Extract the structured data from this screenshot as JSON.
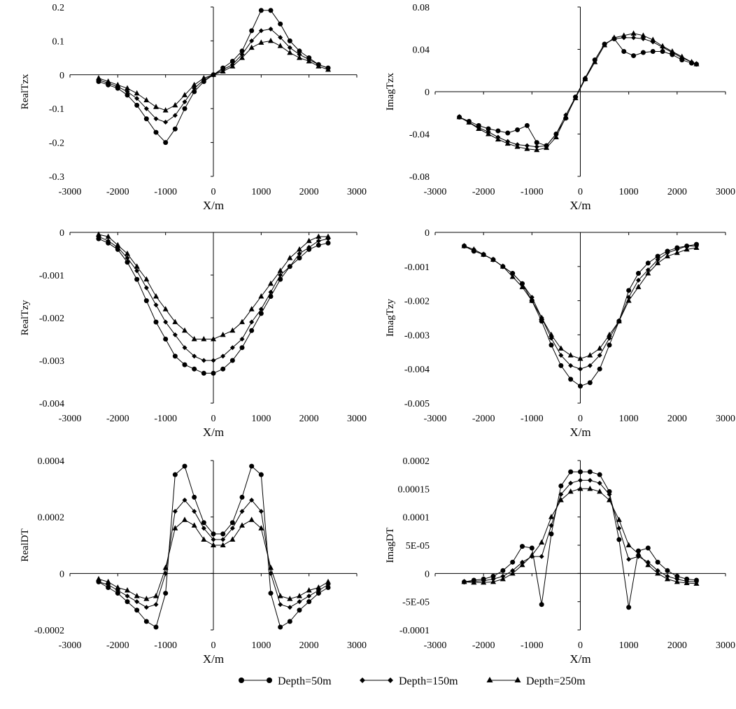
{
  "legend": [
    {
      "label": "Depth=50m",
      "marker": "circle"
    },
    {
      "label": "Depth=150m",
      "marker": "diamond"
    },
    {
      "label": "Depth=250m",
      "marker": "triangle"
    }
  ],
  "chart_data": [
    {
      "type": "line",
      "title": "",
      "xlabel": "X/m",
      "ylabel": "RealTzx",
      "xlim": [
        -3000,
        3000
      ],
      "ylim": [
        -0.3,
        0.2
      ],
      "xticks": [
        -3000,
        -2000,
        -1000,
        0,
        1000,
        2000,
        3000
      ],
      "xtick_labels": [
        "-3000",
        "-2000",
        "-1000",
        "0",
        "1000",
        "2000",
        "3000"
      ],
      "yticks": [
        -0.3,
        -0.2,
        -0.1,
        0,
        0.1,
        0.2
      ],
      "ytick_labels": [
        "-0.3",
        "-0.2",
        "-0.1",
        "0",
        "0.1",
        "0.2"
      ],
      "x": [
        -2400,
        -2200,
        -2000,
        -1800,
        -1600,
        -1400,
        -1200,
        -1000,
        -800,
        -600,
        -400,
        -200,
        0,
        200,
        400,
        600,
        800,
        1000,
        1200,
        1400,
        1600,
        1800,
        2000,
        2200,
        2400
      ],
      "series": [
        {
          "name": "Depth=50m",
          "values": [
            -0.02,
            -0.03,
            -0.04,
            -0.06,
            -0.09,
            -0.13,
            -0.17,
            -0.2,
            -0.16,
            -0.1,
            -0.05,
            -0.02,
            0,
            0.02,
            0.04,
            0.07,
            0.13,
            0.19,
            0.19,
            0.15,
            0.1,
            0.07,
            0.05,
            0.03,
            0.02
          ]
        },
        {
          "name": "Depth=150m",
          "values": [
            -0.015,
            -0.025,
            -0.035,
            -0.05,
            -0.07,
            -0.1,
            -0.13,
            -0.14,
            -0.12,
            -0.08,
            -0.04,
            -0.015,
            0,
            0.015,
            0.03,
            0.06,
            0.1,
            0.13,
            0.135,
            0.11,
            0.08,
            0.06,
            0.045,
            0.03,
            0.02
          ]
        },
        {
          "name": "Depth=250m",
          "values": [
            -0.01,
            -0.02,
            -0.03,
            -0.04,
            -0.055,
            -0.075,
            -0.095,
            -0.105,
            -0.09,
            -0.06,
            -0.03,
            -0.01,
            0,
            0.01,
            0.025,
            0.05,
            0.08,
            0.095,
            0.1,
            0.085,
            0.065,
            0.05,
            0.04,
            0.025,
            0.015
          ]
        }
      ]
    },
    {
      "type": "line",
      "title": "",
      "xlabel": "X/m",
      "ylabel": "ImagTzx",
      "xlim": [
        -3000,
        3000
      ],
      "ylim": [
        -0.08,
        0.08
      ],
      "xticks": [
        -3000,
        -2000,
        -1000,
        0,
        1000,
        2000,
        3000
      ],
      "xtick_labels": [
        "-3000",
        "-2000",
        "-1000",
        "0",
        "1000",
        "2000",
        "3000"
      ],
      "yticks": [
        -0.08,
        -0.04,
        0,
        0.04,
        0.08
      ],
      "ytick_labels": [
        "-0.08",
        "-0.04",
        "0",
        "0.04",
        "0.08"
      ],
      "x": [
        -2500,
        -2300,
        -2100,
        -1900,
        -1700,
        -1500,
        -1300,
        -1100,
        -900,
        -700,
        -500,
        -300,
        -100,
        100,
        300,
        500,
        700,
        900,
        1100,
        1300,
        1500,
        1700,
        1900,
        2100,
        2300,
        2400
      ],
      "series": [
        {
          "name": "Depth=50m",
          "values": [
            -0.024,
            -0.028,
            -0.032,
            -0.035,
            -0.037,
            -0.039,
            -0.036,
            -0.032,
            -0.048,
            -0.051,
            -0.04,
            -0.025,
            -0.005,
            0.012,
            0.03,
            0.045,
            0.05,
            0.038,
            0.034,
            0.037,
            0.038,
            0.038,
            0.035,
            0.03,
            0.027,
            0.026
          ]
        },
        {
          "name": "Depth=150m",
          "values": [
            -0.024,
            -0.029,
            -0.034,
            -0.038,
            -0.043,
            -0.047,
            -0.05,
            -0.051,
            -0.052,
            -0.051,
            -0.04,
            -0.022,
            -0.005,
            0.013,
            0.03,
            0.045,
            0.05,
            0.051,
            0.051,
            0.05,
            0.047,
            0.042,
            0.037,
            0.032,
            0.028,
            0.026
          ]
        },
        {
          "name": "Depth=250m",
          "values": [
            -0.024,
            -0.029,
            -0.035,
            -0.04,
            -0.045,
            -0.049,
            -0.052,
            -0.054,
            -0.055,
            -0.053,
            -0.043,
            -0.024,
            -0.006,
            0.012,
            0.028,
            0.044,
            0.051,
            0.053,
            0.055,
            0.053,
            0.049,
            0.043,
            0.038,
            0.033,
            0.028,
            0.026
          ]
        }
      ]
    },
    {
      "type": "line",
      "title": "",
      "xlabel": "X/m",
      "ylabel": "RealTzy",
      "xlim": [
        -3000,
        3000
      ],
      "ylim": [
        -0.004,
        0
      ],
      "xticks": [
        -3000,
        -2000,
        -1000,
        0,
        1000,
        2000,
        3000
      ],
      "xtick_labels": [
        "-3000",
        "-2000",
        "-1000",
        "0",
        "1000",
        "2000",
        "3000"
      ],
      "yticks": [
        -0.004,
        -0.003,
        -0.002,
        -0.001,
        0
      ],
      "ytick_labels": [
        "-0.004",
        "-0.003",
        "-0.002",
        "-0.001",
        "0"
      ],
      "x": [
        -2400,
        -2200,
        -2000,
        -1800,
        -1600,
        -1400,
        -1200,
        -1000,
        -800,
        -600,
        -400,
        -200,
        0,
        200,
        400,
        600,
        800,
        1000,
        1200,
        1400,
        1600,
        1800,
        2000,
        2200,
        2400
      ],
      "series": [
        {
          "name": "Depth=50m",
          "values": [
            -0.00015,
            -0.00025,
            -0.0004,
            -0.0007,
            -0.0011,
            -0.0016,
            -0.0021,
            -0.0025,
            -0.0029,
            -0.0031,
            -0.0032,
            -0.0033,
            -0.0033,
            -0.0032,
            -0.003,
            -0.0027,
            -0.0023,
            -0.0019,
            -0.0015,
            -0.0011,
            -0.0008,
            -0.0006,
            -0.0004,
            -0.0003,
            -0.00025
          ]
        },
        {
          "name": "Depth=150m",
          "values": [
            -0.0001,
            -0.0002,
            -0.00035,
            -0.0006,
            -0.0009,
            -0.0013,
            -0.0017,
            -0.0021,
            -0.0024,
            -0.0027,
            -0.0029,
            -0.003,
            -0.003,
            -0.0029,
            -0.0027,
            -0.0025,
            -0.0021,
            -0.0018,
            -0.0014,
            -0.001,
            -0.0008,
            -0.0005,
            -0.00035,
            -0.0002,
            -0.00015
          ]
        },
        {
          "name": "Depth=250m",
          "values": [
            -5e-05,
            -0.0001,
            -0.0003,
            -0.0005,
            -0.0008,
            -0.0011,
            -0.0015,
            -0.0018,
            -0.0021,
            -0.0023,
            -0.0025,
            -0.0025,
            -0.0025,
            -0.0024,
            -0.0023,
            -0.0021,
            -0.0018,
            -0.0015,
            -0.0012,
            -0.0009,
            -0.0006,
            -0.0004,
            -0.0002,
            -0.0001,
            -0.0001
          ]
        }
      ]
    },
    {
      "type": "line",
      "title": "",
      "xlabel": "X/m",
      "ylabel": "ImagTzy",
      "xlim": [
        -3000,
        3000
      ],
      "ylim": [
        -0.005,
        0
      ],
      "xticks": [
        -3000,
        -2000,
        -1000,
        0,
        1000,
        2000,
        3000
      ],
      "xtick_labels": [
        "-3000",
        "-2000",
        "-1000",
        "0",
        "1000",
        "2000",
        "3000"
      ],
      "yticks": [
        -0.005,
        -0.004,
        -0.003,
        -0.002,
        -0.001,
        0
      ],
      "ytick_labels": [
        "-0.005",
        "-0.004",
        "-0.003",
        "-0.002",
        "-0.001",
        "0"
      ],
      "x": [
        -2400,
        -2200,
        -2000,
        -1800,
        -1600,
        -1400,
        -1200,
        -1000,
        -800,
        -600,
        -400,
        -200,
        0,
        200,
        400,
        600,
        800,
        1000,
        1200,
        1400,
        1600,
        1800,
        2000,
        2200,
        2400
      ],
      "series": [
        {
          "name": "Depth=50m",
          "values": [
            -0.0004,
            -0.00055,
            -0.00065,
            -0.0008,
            -0.001,
            -0.0012,
            -0.0015,
            -0.002,
            -0.0026,
            -0.0033,
            -0.0039,
            -0.0043,
            -0.0045,
            -0.0044,
            -0.004,
            -0.0033,
            -0.0026,
            -0.0017,
            -0.0012,
            -0.0009,
            -0.0007,
            -0.00055,
            -0.00045,
            -0.0004,
            -0.00035
          ]
        },
        {
          "name": "Depth=150m",
          "values": [
            -0.0004,
            -0.0005,
            -0.00065,
            -0.0008,
            -0.001,
            -0.0012,
            -0.0015,
            -0.0019,
            -0.0025,
            -0.0031,
            -0.0036,
            -0.0039,
            -0.004,
            -0.0039,
            -0.0036,
            -0.0031,
            -0.0026,
            -0.0019,
            -0.0014,
            -0.0011,
            -0.0008,
            -0.0006,
            -0.0005,
            -0.0004,
            -0.0004
          ]
        },
        {
          "name": "Depth=250m",
          "values": [
            -0.0004,
            -0.0005,
            -0.00065,
            -0.0008,
            -0.001,
            -0.0013,
            -0.0016,
            -0.002,
            -0.0025,
            -0.003,
            -0.0034,
            -0.0036,
            -0.0037,
            -0.0036,
            -0.0034,
            -0.003,
            -0.0026,
            -0.002,
            -0.0016,
            -0.0012,
            -0.0009,
            -0.0007,
            -0.0006,
            -0.0005,
            -0.00045
          ]
        }
      ]
    },
    {
      "type": "line",
      "title": "",
      "xlabel": "X/m",
      "ylabel": "RealDT",
      "xlim": [
        -3000,
        3000
      ],
      "ylim": [
        -0.0002,
        0.0004
      ],
      "xticks": [
        -3000,
        -2000,
        -1000,
        0,
        1000,
        2000,
        3000
      ],
      "xtick_labels": [
        "-3000",
        "-2000",
        "-1000",
        "0",
        "1000",
        "2000",
        "3000"
      ],
      "yticks": [
        -0.0002,
        0,
        0.0002,
        0.0004
      ],
      "ytick_labels": [
        "-0.0002",
        "0",
        "0.0002",
        "0.0004"
      ],
      "x": [
        -2400,
        -2200,
        -2000,
        -1800,
        -1600,
        -1400,
        -1200,
        -1000,
        -800,
        -600,
        -400,
        -200,
        0,
        200,
        400,
        600,
        800,
        1000,
        1200,
        1400,
        1600,
        1800,
        2000,
        2200,
        2400
      ],
      "series": [
        {
          "name": "Depth=50m",
          "values": [
            -3e-05,
            -5e-05,
            -7e-05,
            -0.0001,
            -0.00013,
            -0.00017,
            -0.00019,
            -7e-05,
            0.00035,
            0.00038,
            0.00027,
            0.00018,
            0.00014,
            0.00014,
            0.00018,
            0.00027,
            0.00038,
            0.00035,
            -7e-05,
            -0.00019,
            -0.00017,
            -0.00013,
            -0.0001,
            -7e-05,
            -5e-05
          ]
        },
        {
          "name": "Depth=150m",
          "values": [
            -3e-05,
            -4e-05,
            -6e-05,
            -8e-05,
            -0.0001,
            -0.00012,
            -0.00011,
            0,
            0.00022,
            0.00026,
            0.00022,
            0.00016,
            0.00012,
            0.00012,
            0.00016,
            0.00022,
            0.00026,
            0.00022,
            0,
            -0.00011,
            -0.00012,
            -0.0001,
            -8e-05,
            -6e-05,
            -4e-05
          ]
        },
        {
          "name": "Depth=250m",
          "values": [
            -2e-05,
            -3e-05,
            -5e-05,
            -6e-05,
            -8e-05,
            -9e-05,
            -8e-05,
            2e-05,
            0.00016,
            0.00019,
            0.00017,
            0.00012,
            0.0001,
            0.0001,
            0.00012,
            0.00017,
            0.00019,
            0.00016,
            2e-05,
            -8e-05,
            -9e-05,
            -8e-05,
            -6e-05,
            -5e-05,
            -3e-05
          ]
        }
      ]
    },
    {
      "type": "line",
      "title": "",
      "xlabel": "X/m",
      "ylabel": "ImagDT",
      "xlim": [
        -3000,
        3000
      ],
      "ylim": [
        -0.0001,
        0.0002
      ],
      "xticks": [
        -3000,
        -2000,
        -1000,
        0,
        1000,
        2000,
        3000
      ],
      "xtick_labels": [
        "-3000",
        "-2000",
        "-1000",
        "0",
        "1000",
        "2000",
        "3000"
      ],
      "yticks": [
        -0.0001,
        -5e-05,
        0,
        5e-05,
        0.0001,
        0.00015,
        0.0002
      ],
      "ytick_labels": [
        "-0.0001",
        "-5E-05",
        "0",
        "5E-05",
        "0.0001",
        "0.00015",
        "0.0002"
      ],
      "x": [
        -2400,
        -2200,
        -2000,
        -1800,
        -1600,
        -1400,
        -1200,
        -1000,
        -800,
        -600,
        -400,
        -200,
        0,
        200,
        400,
        600,
        800,
        1000,
        1200,
        1400,
        1600,
        1800,
        2000,
        2200,
        2400
      ],
      "series": [
        {
          "name": "Depth=50m",
          "values": [
            -1.5e-05,
            -1.2e-05,
            -1e-05,
            -5e-06,
            5e-06,
            2e-05,
            4.8e-05,
            4.5e-05,
            -5.5e-05,
            7e-05,
            0.000155,
            0.00018,
            0.00018,
            0.00018,
            0.000175,
            0.000145,
            6e-05,
            -6e-05,
            4e-05,
            4.5e-05,
            2e-05,
            5e-06,
            -5e-06,
            -1e-05,
            -1.2e-05
          ]
        },
        {
          "name": "Depth=150m",
          "values": [
            -1.5e-05,
            -1.4e-05,
            -1.3e-05,
            -1e-05,
            -5e-06,
            5e-06,
            2e-05,
            3e-05,
            3e-05,
            8.5e-05,
            0.00014,
            0.00016,
            0.000165,
            0.000165,
            0.00016,
            0.00014,
            8e-05,
            2.5e-05,
            3e-05,
            2e-05,
            5e-06,
            -5e-06,
            -1e-05,
            -1.4e-05,
            -1.5e-05
          ]
        },
        {
          "name": "Depth=250m",
          "values": [
            -1.5e-05,
            -1.6e-05,
            -1.6e-05,
            -1.5e-05,
            -1e-05,
            0,
            1.5e-05,
            3.2e-05,
            5.5e-05,
            0.0001,
            0.00013,
            0.000145,
            0.00015,
            0.00015,
            0.000145,
            0.00013,
            9.5e-05,
            5e-05,
            3.5e-05,
            1.5e-05,
            0,
            -1e-05,
            -1.5e-05,
            -1.7e-05,
            -1.8e-05
          ]
        }
      ]
    }
  ]
}
